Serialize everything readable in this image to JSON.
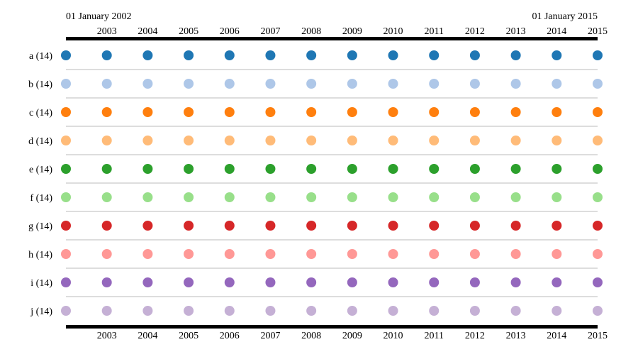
{
  "chart_data": {
    "type": "scatter",
    "start_label": "01 January 2002",
    "end_label": "01 January 2015",
    "x": [
      2002,
      2003,
      2004,
      2005,
      2006,
      2007,
      2008,
      2009,
      2010,
      2011,
      2012,
      2013,
      2014,
      2015
    ],
    "xlim": [
      2002,
      2015
    ],
    "tick_labels": [
      "2003",
      "2004",
      "2005",
      "2006",
      "2007",
      "2008",
      "2009",
      "2010",
      "2011",
      "2012",
      "2013",
      "2014",
      "2015"
    ],
    "series": [
      {
        "name": "a (14)",
        "color": "#1f77b4"
      },
      {
        "name": "b (14)",
        "color": "#aec7e8"
      },
      {
        "name": "c (14)",
        "color": "#ff7f0e"
      },
      {
        "name": "d (14)",
        "color": "#ffbb78"
      },
      {
        "name": "e (14)",
        "color": "#2ca02c"
      },
      {
        "name": "f (14)",
        "color": "#98df8a"
      },
      {
        "name": "g (14)",
        "color": "#d62728"
      },
      {
        "name": "h (14)",
        "color": "#ff9896"
      },
      {
        "name": "i (14)",
        "color": "#9467bd"
      },
      {
        "name": "j (14)",
        "color": "#c5b0d5"
      }
    ]
  }
}
